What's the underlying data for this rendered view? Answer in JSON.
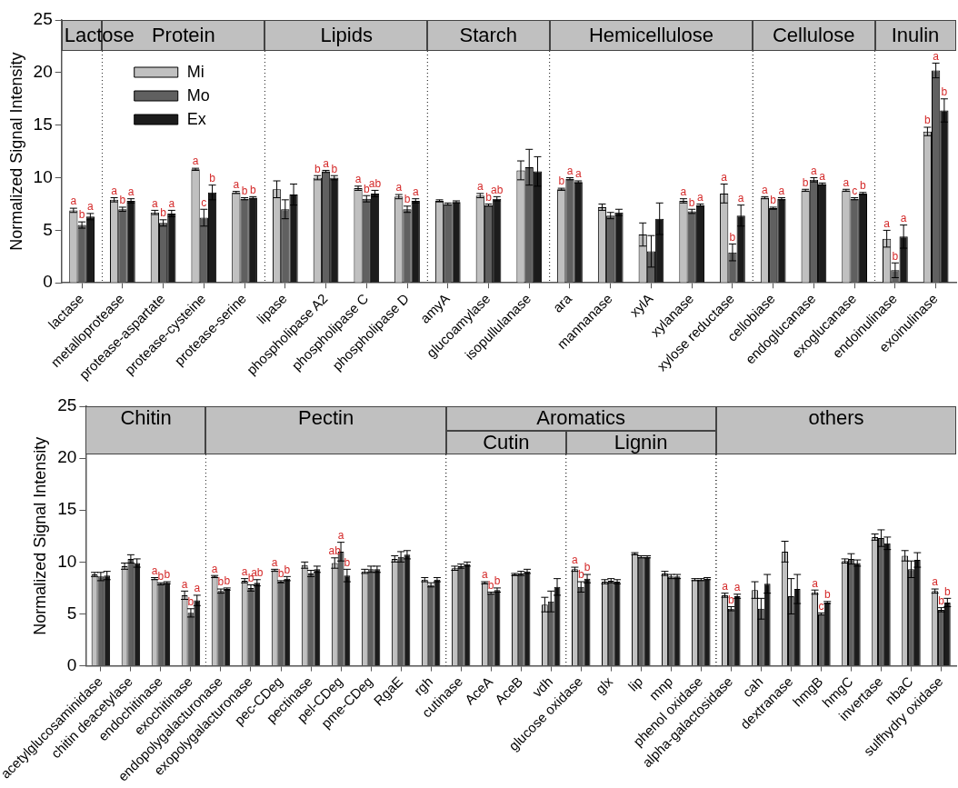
{
  "chart_data": [
    {
      "type": "bar",
      "ylabel": "Normalized Signal Intensity",
      "ylim": [
        0,
        25
      ],
      "yticks": [
        0,
        5,
        10,
        15,
        20,
        25
      ],
      "grid": false,
      "legend": "top left",
      "categories": [
        "lactase",
        "metalloprotease",
        "protease-aspartate",
        "protease-cysteine",
        "protease-serine",
        "lipase",
        "phospholipase A2",
        "phospholipase C",
        "phospholipase D",
        "amyA",
        "glucoamylase",
        "isopullulanase",
        "ara",
        "mannanase",
        "xylA",
        "xylanase",
        "xylose reductase",
        "cellobiase",
        "endoglucanase",
        "exoglucanase",
        "endoinulinase",
        "exoinulinase"
      ],
      "series": [
        {
          "name": "Mi",
          "color": "#c0c0c0",
          "values": [
            6.9,
            7.9,
            6.7,
            10.8,
            8.6,
            8.9,
            10.0,
            9.0,
            8.2,
            7.8,
            8.3,
            10.7,
            8.9,
            7.2,
            4.6,
            7.8,
            8.5,
            8.1,
            8.8,
            8.8,
            4.2,
            14.4
          ],
          "errors": [
            0.2,
            0.2,
            0.2,
            0.1,
            0.1,
            0.8,
            0.2,
            0.2,
            0.2,
            0.1,
            0.2,
            0.9,
            0.1,
            0.3,
            1.1,
            0.2,
            0.9,
            0.1,
            0.1,
            0.1,
            0.8,
            0.4
          ],
          "value_labels": [
            "a",
            "a",
            "a",
            "a",
            "a",
            null,
            "b",
            "a",
            "a",
            null,
            "a",
            null,
            "b",
            null,
            null,
            "a",
            "a",
            "a",
            "b",
            "a",
            "a",
            "b"
          ]
        },
        {
          "name": "Mo",
          "color": "#606060",
          "values": [
            5.5,
            7.0,
            5.7,
            6.2,
            8.0,
            7.0,
            10.6,
            8.0,
            7.0,
            7.5,
            7.4,
            11.0,
            9.9,
            6.4,
            3.0,
            6.8,
            2.9,
            7.1,
            9.8,
            8.0,
            1.2,
            20.2
          ],
          "errors": [
            0.3,
            0.2,
            0.3,
            0.8,
            0.1,
            0.9,
            0.1,
            0.3,
            0.3,
            0.1,
            0.1,
            1.7,
            0.1,
            0.3,
            1.5,
            0.2,
            0.8,
            0.1,
            0.2,
            0.1,
            0.7,
            0.7
          ],
          "value_labels": [
            "b",
            "b",
            "b",
            "c",
            "b",
            null,
            "a",
            "b",
            "b",
            null,
            "b",
            null,
            "a",
            null,
            null,
            "b",
            "b",
            "b",
            "a",
            "c",
            "b",
            "a"
          ]
        },
        {
          "name": "Ex",
          "color": "#1c1c1c",
          "values": [
            6.3,
            7.8,
            6.6,
            8.6,
            8.1,
            8.4,
            10.0,
            8.5,
            7.8,
            7.7,
            8.0,
            10.6,
            9.6,
            6.7,
            6.1,
            7.4,
            6.4,
            8.0,
            9.4,
            8.5,
            4.4,
            16.4
          ],
          "errors": [
            0.3,
            0.2,
            0.3,
            0.7,
            0.1,
            1.0,
            0.2,
            0.3,
            0.2,
            0.1,
            0.2,
            1.4,
            0.1,
            0.3,
            1.5,
            0.1,
            1.0,
            0.1,
            0.1,
            0.1,
            1.1,
            1.1
          ],
          "value_labels": [
            "a",
            "a",
            "a",
            "b",
            "b",
            null,
            "b",
            "ab",
            "a",
            null,
            "ab",
            null,
            "a",
            null,
            null,
            "a",
            "a",
            "a",
            "a",
            "b",
            "a",
            "b"
          ]
        }
      ],
      "annotations": [
        "Lactose",
        "Protein",
        "Lipids",
        "Starch",
        "Hemicellulose",
        "Cellulose",
        "Inulin"
      ]
    },
    {
      "type": "bar",
      "ylabel": "Normalized Signal Intensity",
      "ylim": [
        0,
        25
      ],
      "yticks": [
        0,
        5,
        10,
        15,
        20,
        25
      ],
      "grid": false,
      "categories": [
        "acetylglucosaminidase",
        "chitin deacetylase",
        "endochitinase",
        "exochitinase",
        "endopolygalacturonase",
        "exopolygalacturonase",
        "pec-CDeg",
        "pectinase",
        "pel-CDeg",
        "pme-CDeg",
        "RgaE",
        "rgh",
        "cutinase",
        "AceA",
        "AceB",
        "vdh",
        "glucose oxidase",
        "glx",
        "lip",
        "mnp",
        "phenol oxidase",
        "alpha-galactosidase",
        "cah",
        "dextranase",
        "hmgB",
        "hmgC",
        "invertase",
        "nbaC",
        "sulfhydry oxidase"
      ],
      "series": [
        {
          "color": "#c0c0c0",
          "values": [
            8.8,
            9.6,
            8.4,
            6.8,
            8.6,
            8.2,
            9.2,
            9.7,
            9.9,
            9.1,
            10.3,
            8.3,
            9.4,
            8.0,
            8.8,
            5.9,
            9.3,
            8.1,
            10.8,
            8.9,
            8.3,
            6.8,
            7.3,
            11.0,
            7.1,
            10.1,
            12.4,
            10.6,
            7.2
          ],
          "errors": [
            0.2,
            0.3,
            0.1,
            0.4,
            0.1,
            0.2,
            0.1,
            0.3,
            0.5,
            0.2,
            0.3,
            0.2,
            0.2,
            0.1,
            0.1,
            0.7,
            0.2,
            0.2,
            0.1,
            0.2,
            0.1,
            0.2,
            0.8,
            1.0,
            0.2,
            0.2,
            0.3,
            0.5,
            0.2
          ],
          "value_labels": [
            null,
            null,
            "a",
            "a",
            "a",
            "a",
            "a",
            null,
            "ab",
            null,
            null,
            null,
            null,
            "a",
            null,
            null,
            "a",
            null,
            null,
            null,
            null,
            "a",
            null,
            null,
            "a",
            null,
            null,
            null,
            "a"
          ]
        },
        {
          "color": "#606060",
          "values": [
            8.6,
            10.3,
            7.9,
            5.1,
            7.2,
            7.5,
            8.1,
            8.9,
            11.0,
            9.3,
            10.5,
            7.8,
            9.6,
            7.0,
            8.9,
            6.2,
            7.6,
            8.2,
            10.5,
            8.6,
            8.3,
            5.5,
            5.5,
            6.7,
            5.0,
            10.3,
            12.3,
            9.3,
            5.4
          ],
          "errors": [
            0.4,
            0.4,
            0.1,
            0.4,
            0.2,
            0.3,
            0.1,
            0.3,
            0.9,
            0.3,
            0.5,
            0.2,
            0.2,
            0.1,
            0.2,
            1.0,
            0.5,
            0.2,
            0.1,
            0.2,
            0.1,
            0.2,
            1.0,
            1.7,
            0.1,
            0.5,
            0.8,
            0.8,
            0.2
          ],
          "value_labels": [
            null,
            null,
            "b",
            "b",
            "b",
            "b",
            "b",
            null,
            "a",
            null,
            null,
            null,
            null,
            "b",
            null,
            null,
            "b",
            null,
            null,
            null,
            null,
            "b",
            null,
            null,
            "c",
            null,
            null,
            null,
            "b"
          ]
        },
        {
          "color": "#1c1c1c",
          "values": [
            8.7,
            9.9,
            8.0,
            6.3,
            7.4,
            8.0,
            8.4,
            9.3,
            8.7,
            9.3,
            10.7,
            8.3,
            9.8,
            7.3,
            9.1,
            7.6,
            8.4,
            8.1,
            10.5,
            8.6,
            8.4,
            6.7,
            7.9,
            7.4,
            6.1,
            9.9,
            11.8,
            10.2,
            6.1
          ],
          "errors": [
            0.4,
            0.4,
            0.1,
            0.5,
            0.1,
            0.3,
            0.2,
            0.3,
            0.6,
            0.3,
            0.4,
            0.2,
            0.2,
            0.2,
            0.2,
            0.8,
            0.4,
            0.2,
            0.1,
            0.2,
            0.1,
            0.2,
            0.9,
            1.4,
            0.1,
            0.3,
            0.6,
            0.7,
            0.4
          ],
          "value_labels": [
            null,
            null,
            "b",
            "a",
            "b",
            "ab",
            "b",
            null,
            "b",
            null,
            null,
            null,
            null,
            "b",
            null,
            null,
            "b",
            null,
            null,
            null,
            null,
            "a",
            null,
            null,
            "b",
            null,
            null,
            null,
            "b"
          ]
        }
      ],
      "annotations": [
        "Chitin",
        "Pectin",
        "Aromatics",
        "others",
        "Cutin",
        "Lignin"
      ]
    }
  ]
}
